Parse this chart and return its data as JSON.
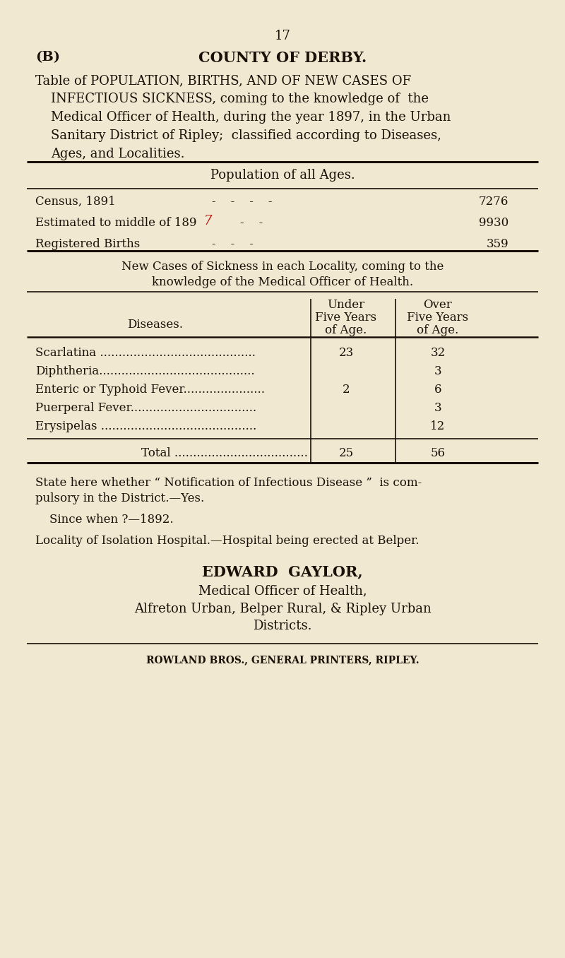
{
  "bg_color": "#f0e8d0",
  "text_color": "#1a1008",
  "page_number": "17",
  "header_left": "(B)",
  "header_center": "COUNTY OF DERBY.",
  "title_line1": "Table of POPULATION, BIRTHS, AND OF NEW CASES OF",
  "title_line2": "INFECTIOUS SICKNESS, coming to the knowledge of  the",
  "title_line3": "Medical Officer of Health, during the year 1897, in the Urban",
  "title_line4": "Sanitary District of Ripley;  classified according to Diseases,",
  "title_line5": "Ages, and Localities.",
  "pop_header": "Population of all Ages.",
  "pop_label1": "Census, 1891",
  "pop_dots1": "-    -    -    -",
  "pop_val1": "7276",
  "pop_label2": "Estimated to middle of 189",
  "pop_dots2": "-    -",
  "pop_val2": "9930",
  "pop_label3": "Registered Births",
  "pop_dots3": "-    -    -",
  "pop_val3": "359",
  "new_cases_h1": "New Cases of Sickness in each Locality, coming to the",
  "new_cases_h2": "knowledge of the Medical Officer of Health.",
  "diseases_label": "Diseases.",
  "col1_h1": "Under",
  "col1_h2": "Five Years",
  "col1_h3": "of Age.",
  "col2_h1": "Over",
  "col2_h2": "Five Years",
  "col2_h3": "of Age.",
  "d1": "Scarlatina ..........................................",
  "d1_u": "23",
  "d1_o": "32",
  "d2": "Diphtheria..........................................",
  "d2_u": "",
  "d2_o": "3",
  "d3": "Enteric or Typhoid Fever......................",
  "d3_u": "2",
  "d3_o": "6",
  "d4": "Puerperal Fever..................................",
  "d4_u": "",
  "d4_o": "3",
  "d5": "Erysipelas ..........................................",
  "d5_u": "",
  "d5_o": "12",
  "total_label": "Total ....................................",
  "total_u": "25",
  "total_o": "56",
  "note1a": "State here whether “ Notification of Infectious Disease ”  is com-",
  "note1b": "pulsory in the District.—Yes.",
  "note2": "Since when ?—1892.",
  "note3": "Locality of Isolation Hospital.—Hospital being erected at Belper.",
  "sig1": "EDWARD  GAYLOR,",
  "sig2": "Medical Officer of Health,",
  "sig3": "Alfreton Urban, Belper Rural, & Ripley Urban",
  "sig4": "Districts.",
  "footer": "ROWLAND BROS., GENERAL PRINTERS, RIPLEY.",
  "red_char": "7"
}
